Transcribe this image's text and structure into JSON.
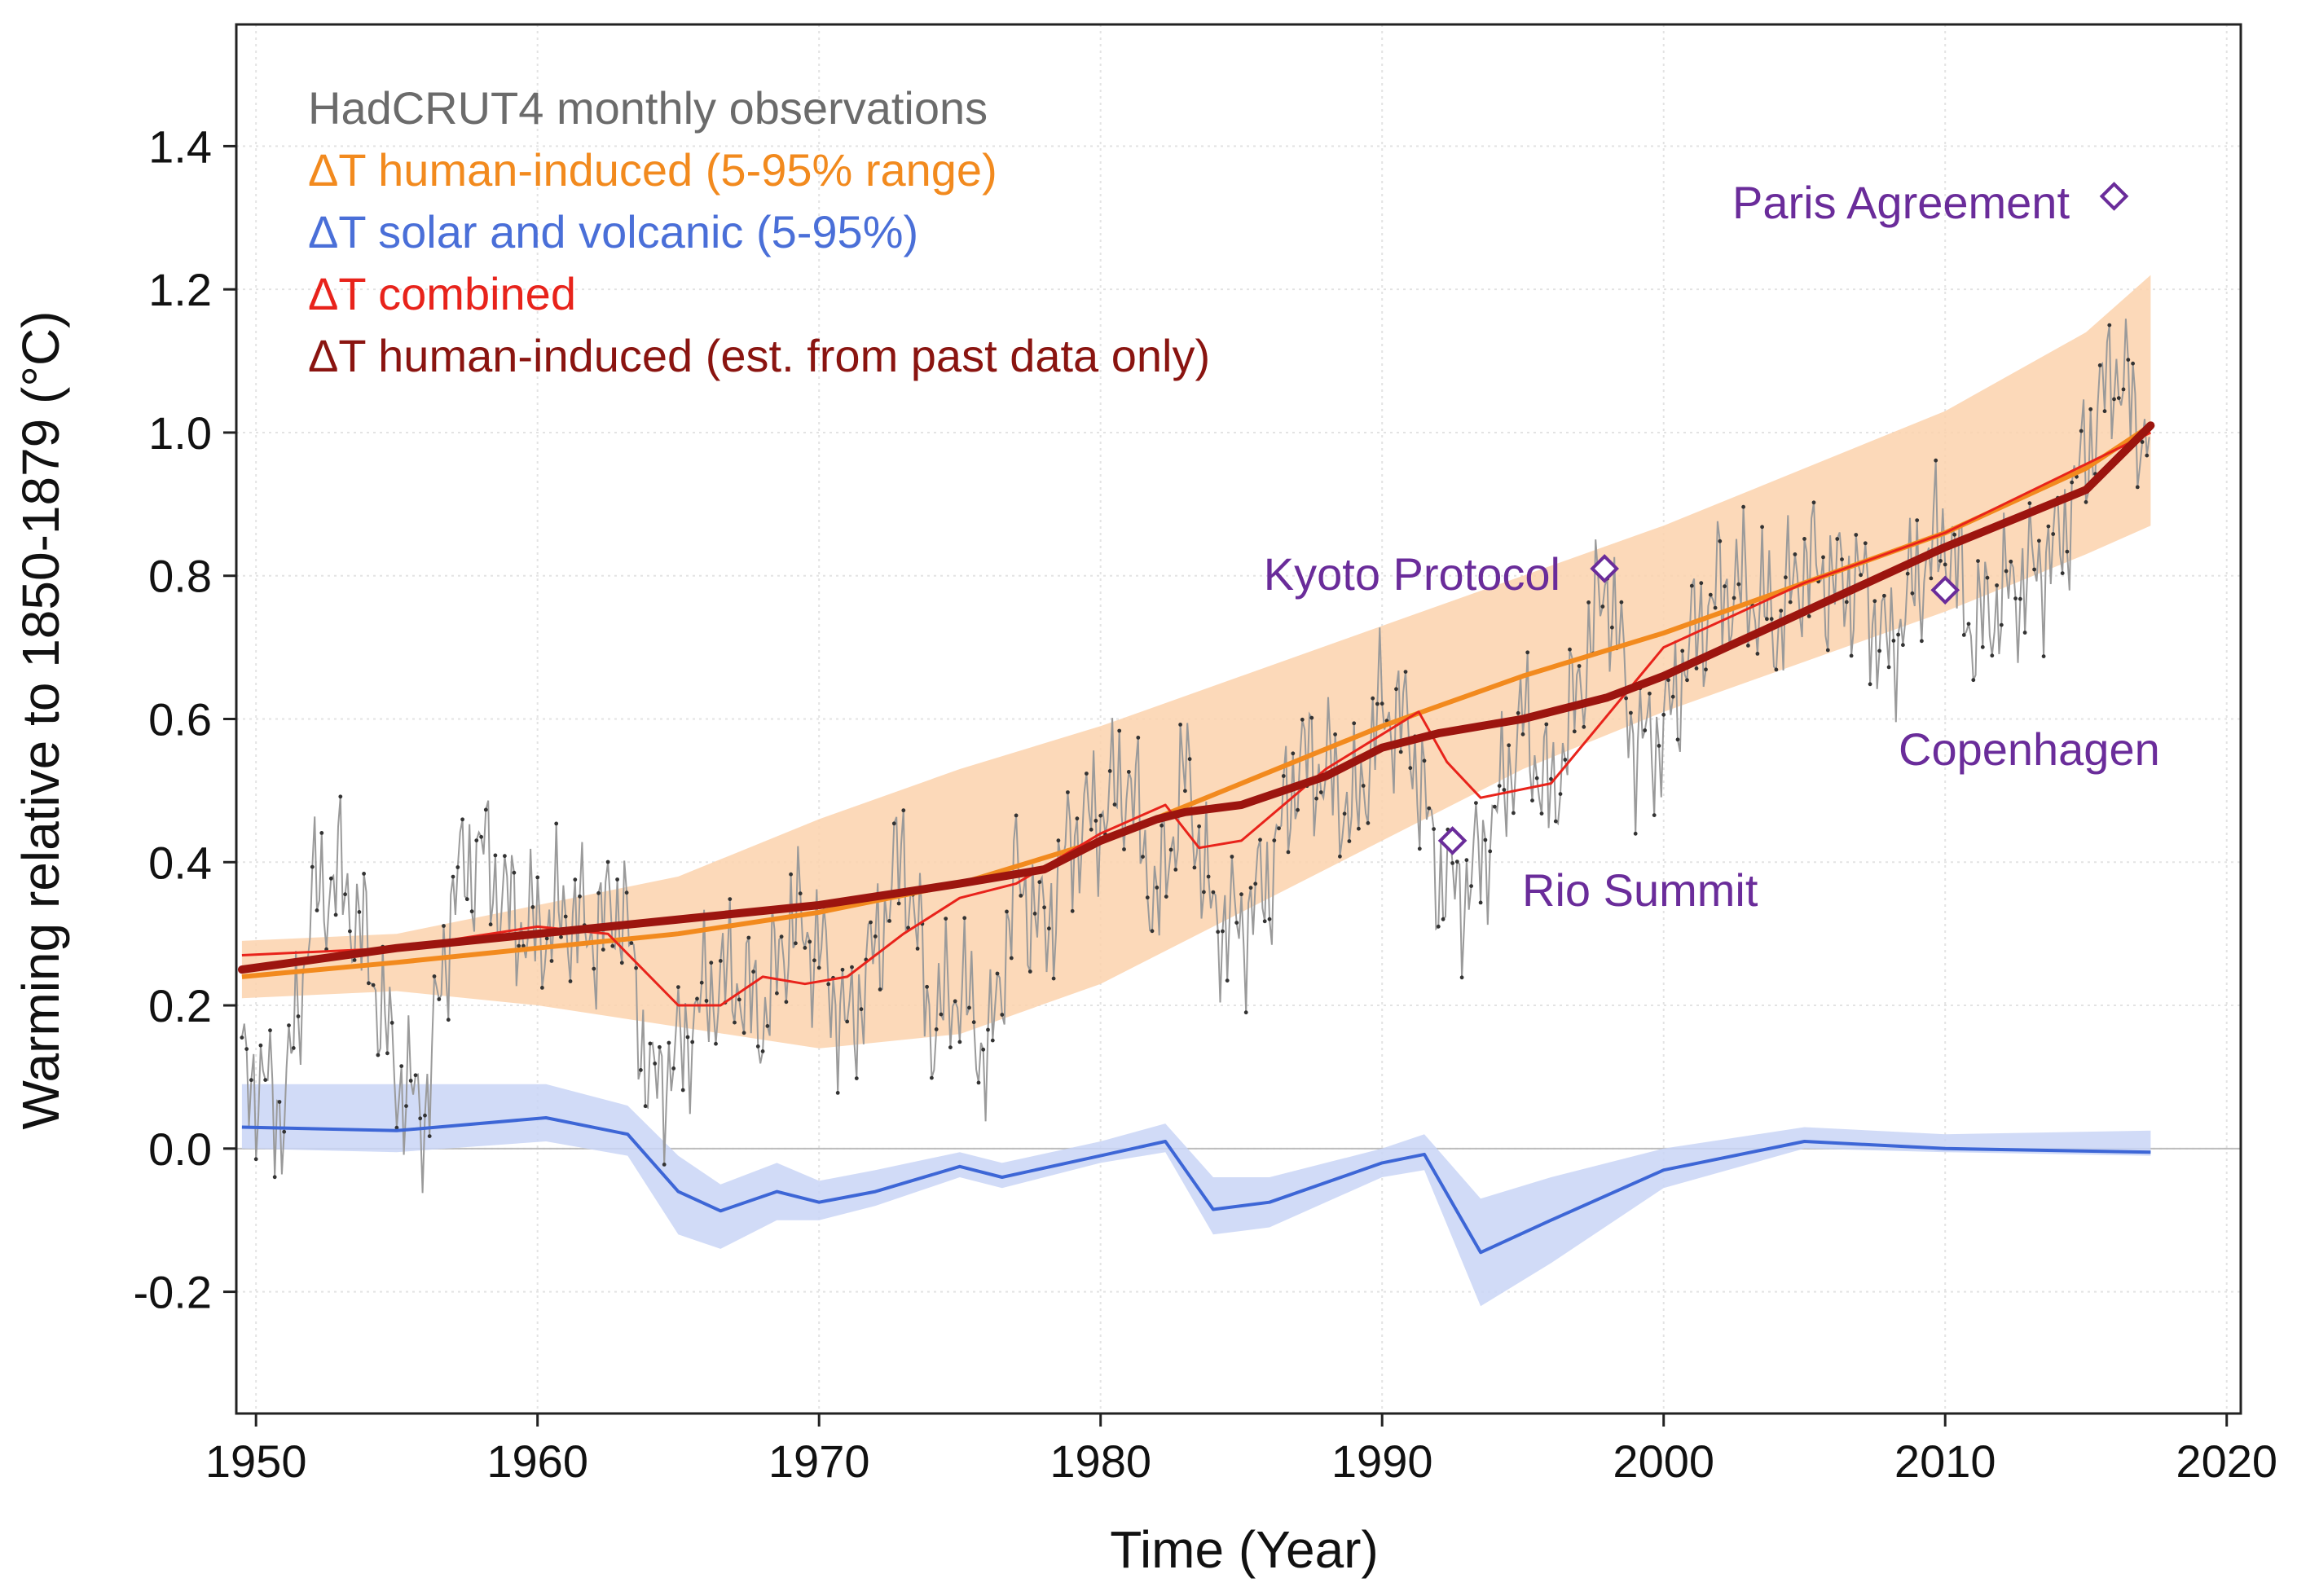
{
  "chart_data": {
    "type": "line",
    "xlabel": "Time (Year)",
    "ylabel": "Warming relative to 1850-1879 (°C)",
    "xlim": [
      1949.3,
      2020.5
    ],
    "ylim": [
      -0.37,
      1.57
    ],
    "x_ticks": [
      1950,
      1960,
      1970,
      1980,
      1990,
      2000,
      2010,
      2020
    ],
    "x_tick_labels": [
      "1950",
      "1960",
      "1970",
      "1980",
      "1990",
      "2000",
      "2010",
      "2020"
    ],
    "y_ticks": [
      -0.2,
      0.0,
      0.2,
      0.4,
      0.6,
      0.8,
      1.0,
      1.2,
      1.4
    ],
    "y_tick_labels": [
      "-0.2",
      "0.0",
      "0.2",
      "0.4",
      "0.6",
      "0.8",
      "1.0",
      "1.2",
      "1.4"
    ],
    "grid": true,
    "legend_position": "top-left",
    "legend": [
      {
        "label": "HadCRUT4 monthly observations",
        "color": "#6b6b6b"
      },
      {
        "label": "ΔT human-induced (5-95% range)",
        "color": "#f28a1e"
      },
      {
        "label": "ΔT solar and volcanic (5-95%)",
        "color": "#4a6fd8"
      },
      {
        "label": "ΔT combined",
        "color": "#e8231b"
      },
      {
        "label": "ΔT human-induced (est. from past data only)",
        "color": "#8a1410"
      }
    ],
    "colors": {
      "observations": "#9a9a9a",
      "human_line": "#f28a1e",
      "human_band": "#fbd2ad",
      "natural_line": "#3d66d6",
      "natural_band": "#c9d5f6",
      "combined": "#e8231b",
      "past_only": "#9c150f",
      "annotation": "#6a2c9a"
    },
    "series": [
      {
        "name": "ΔT human-induced (5-95% range)",
        "x": [
          1949.5,
          1955,
          1960,
          1965,
          1970,
          1975,
          1980,
          1985,
          1990,
          1995,
          2000,
          2005,
          2010,
          2015,
          2017.3
        ],
        "values": [
          0.24,
          0.26,
          0.28,
          0.3,
          0.33,
          0.37,
          0.43,
          0.51,
          0.59,
          0.66,
          0.72,
          0.79,
          0.86,
          0.95,
          1.01
        ],
        "lower": [
          0.21,
          0.22,
          0.2,
          0.17,
          0.14,
          0.16,
          0.23,
          0.33,
          0.43,
          0.53,
          0.61,
          0.68,
          0.75,
          0.83,
          0.87
        ],
        "upper": [
          0.29,
          0.3,
          0.34,
          0.38,
          0.46,
          0.53,
          0.59,
          0.66,
          0.73,
          0.8,
          0.87,
          0.95,
          1.03,
          1.14,
          1.22
        ]
      },
      {
        "name": "ΔT solar and volcanic (5-95%)",
        "x": [
          1949.5,
          1955,
          1960.3,
          1963.2,
          1965,
          1966.5,
          1968.5,
          1970,
          1972,
          1975,
          1976.5,
          1980,
          1982.3,
          1984,
          1986,
          1990,
          1991.5,
          1993.5,
          1996,
          2000,
          2005,
          2010,
          2017.3
        ],
        "values": [
          0.03,
          0.025,
          0.043,
          0.02,
          -0.06,
          -0.087,
          -0.06,
          -0.075,
          -0.06,
          -0.025,
          -0.04,
          -0.01,
          0.01,
          -0.085,
          -0.075,
          -0.02,
          -0.008,
          -0.145,
          -0.1,
          -0.03,
          0.01,
          0.0,
          -0.005
        ],
        "lower": [
          0.0,
          -0.005,
          0.01,
          -0.01,
          -0.12,
          -0.14,
          -0.1,
          -0.1,
          -0.08,
          -0.04,
          -0.055,
          -0.02,
          -0.005,
          -0.12,
          -0.11,
          -0.04,
          -0.03,
          -0.22,
          -0.16,
          -0.055,
          0.0,
          -0.005,
          -0.01
        ],
        "upper": [
          0.09,
          0.09,
          0.09,
          0.06,
          -0.01,
          -0.05,
          -0.02,
          -0.045,
          -0.03,
          -0.005,
          -0.02,
          0.01,
          0.035,
          -0.04,
          -0.04,
          0.0,
          0.02,
          -0.07,
          -0.04,
          0.0,
          0.03,
          0.02,
          0.025
        ]
      },
      {
        "name": "ΔT combined",
        "x": [
          1949.5,
          1955,
          1960,
          1962.5,
          1963.5,
          1965,
          1966.5,
          1968,
          1969.5,
          1971,
          1973,
          1975,
          1977,
          1980,
          1982.3,
          1983.5,
          1985,
          1988,
          1991.3,
          1992.3,
          1993.5,
          1996,
          2000,
          2005,
          2010,
          2017.3
        ],
        "values": [
          0.27,
          0.28,
          0.31,
          0.3,
          0.26,
          0.2,
          0.2,
          0.24,
          0.23,
          0.24,
          0.3,
          0.35,
          0.37,
          0.44,
          0.48,
          0.42,
          0.43,
          0.53,
          0.61,
          0.54,
          0.49,
          0.51,
          0.7,
          0.79,
          0.86,
          1.0
        ]
      },
      {
        "name": "ΔT human-induced (est. from past data only)",
        "x": [
          1949.5,
          1955,
          1960,
          1965,
          1970,
          1975,
          1978,
          1980,
          1982,
          1983,
          1985,
          1988,
          1990,
          1992,
          1995,
          1998,
          2000,
          2005,
          2010,
          2015,
          2017.3
        ],
        "values": [
          0.25,
          0.28,
          0.3,
          0.32,
          0.34,
          0.37,
          0.39,
          0.43,
          0.46,
          0.47,
          0.48,
          0.52,
          0.56,
          0.58,
          0.6,
          0.63,
          0.66,
          0.75,
          0.84,
          0.92,
          1.01
        ]
      }
    ],
    "observations": {
      "name": "HadCRUT4 monthly observations",
      "x_start": 1949.5,
      "x_end": 2017.3,
      "anchor_x": [
        1950,
        1951,
        1952,
        1953,
        1954,
        1955,
        1956,
        1957,
        1958,
        1959,
        1960,
        1961,
        1962,
        1963,
        1964,
        1965,
        1966,
        1967,
        1968,
        1969,
        1970,
        1971,
        1972,
        1973,
        1974,
        1975,
        1976,
        1977,
        1978,
        1979,
        1980,
        1981,
        1982,
        1983,
        1984,
        1985,
        1986,
        1987,
        1988,
        1989,
        1990,
        1991,
        1992,
        1993,
        1994,
        1995,
        1996,
        1997,
        1998,
        1999,
        2000,
        2001,
        2002,
        2003,
        2004,
        2005,
        2006,
        2007,
        2008,
        2009,
        2010,
        2011,
        2012,
        2013,
        2014,
        2015,
        2016,
        2017
      ],
      "anchor_values": [
        0.1,
        0.05,
        0.35,
        0.38,
        0.27,
        0.1,
        0.05,
        0.36,
        0.42,
        0.33,
        0.3,
        0.33,
        0.3,
        0.35,
        0.08,
        0.13,
        0.22,
        0.24,
        0.18,
        0.32,
        0.28,
        0.16,
        0.28,
        0.42,
        0.17,
        0.23,
        0.12,
        0.38,
        0.3,
        0.44,
        0.47,
        0.52,
        0.33,
        0.53,
        0.32,
        0.31,
        0.38,
        0.54,
        0.53,
        0.46,
        0.62,
        0.58,
        0.38,
        0.36,
        0.46,
        0.6,
        0.48,
        0.65,
        0.8,
        0.56,
        0.58,
        0.71,
        0.78,
        0.78,
        0.73,
        0.82,
        0.79,
        0.79,
        0.69,
        0.8,
        0.86,
        0.72,
        0.77,
        0.8,
        0.84,
        0.97,
        1.1,
        1.0
      ]
    },
    "annotations": [
      {
        "text": "Paris Agreement",
        "x": 2016.0,
        "y": 1.33,
        "label_side": "left"
      },
      {
        "text": "Kyoto Protocol",
        "x": 1997.9,
        "y": 0.81,
        "label_side": "left"
      },
      {
        "text": "Copenhagen",
        "x": 2010.0,
        "y": 0.78,
        "label_side": "below"
      },
      {
        "text": "Rio Summit",
        "x": 1992.5,
        "y": 0.43,
        "label_side": "below-right"
      }
    ]
  }
}
